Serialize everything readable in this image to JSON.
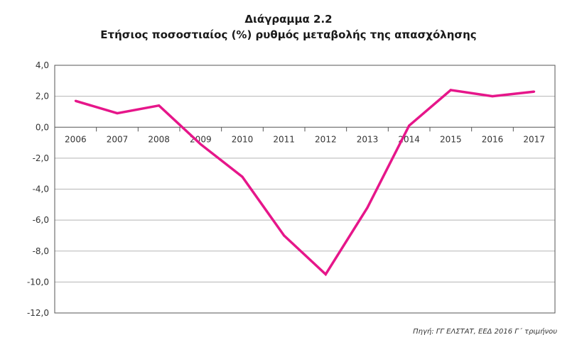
{
  "chart_data": {
    "type": "line",
    "title": "Διάγραμμα 2.2",
    "subtitle": "Ετήσιος ποσοστιαίος (%) ρυθμός μεταβολής της απασχόλησης",
    "xlabel": "",
    "ylabel": "",
    "categories": [
      "2006",
      "2007",
      "2008",
      "2009",
      "2010",
      "2011",
      "2012",
      "2013",
      "2014",
      "2015",
      "2016",
      "2017"
    ],
    "series": [
      {
        "values": [
          1.7,
          0.9,
          1.4,
          -1.1,
          -3.2,
          -7.0,
          -9.5,
          -5.2,
          0.1,
          2.4,
          2.0,
          2.3
        ]
      }
    ],
    "ylim": [
      -12,
      4
    ],
    "yticks": [
      4,
      2,
      0,
      -2,
      -4,
      -6,
      -8,
      -10,
      -12
    ],
    "ytick_labels": [
      "4,0",
      "2,0",
      "0,0",
      "-2,0",
      "-4,0",
      "-6,0",
      "-8,0",
      "-10,0",
      "-12,0"
    ],
    "grid": true,
    "line_color": "#e6168a",
    "source": "Πηγή: ΓΓ ΕΛΣΤΑΤ, ΕΕΔ 2016 Γ΄ τριμήνου"
  }
}
